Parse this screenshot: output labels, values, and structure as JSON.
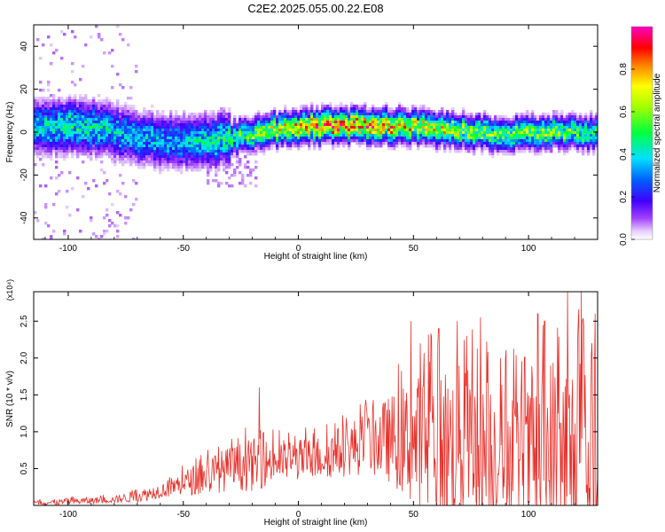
{
  "title": "C2E2.2025.055.00.22.E08",
  "colors": {
    "snr_line": "#e8312b",
    "frame": "#000000",
    "background": "#ffffff"
  },
  "chart_data": [
    {
      "type": "heatmap",
      "xlabel": "Height of straight line (km)",
      "ylabel": "Frequency (Hz)",
      "xlim": [
        -115,
        130
      ],
      "ylim": [
        -50,
        50
      ],
      "x_ticks": [
        "-100",
        "-50",
        "0",
        "50",
        "100"
      ],
      "y_ticks": [
        "-40",
        "-20",
        "0",
        "20",
        "40"
      ],
      "colorbar": {
        "label": "Normalized spectral amplitude",
        "range": [
          0,
          1
        ],
        "ticks": [
          "0.0",
          "0.2",
          "0.4",
          "0.6",
          "0.8"
        ],
        "colormap": "rainbow (white-violet-blue-cyan-green-yellow-red-magenta)"
      },
      "ridge": {
        "x": [
          -115,
          -100,
          -85,
          -70,
          -50,
          -35,
          -20,
          -10,
          0,
          10,
          20,
          30,
          40,
          50,
          60,
          70,
          80,
          90,
          100,
          110,
          120,
          130
        ],
        "frequency_hz": [
          3,
          4,
          2,
          -2,
          -4,
          -3,
          0,
          2,
          3,
          3.5,
          3.5,
          3.5,
          3.5,
          3,
          2,
          1,
          0,
          -0.5,
          0,
          0.5,
          0.5,
          0
        ],
        "peak_amplitude": [
          0.45,
          0.5,
          0.45,
          0.4,
          0.4,
          0.5,
          0.65,
          0.75,
          0.85,
          0.95,
          0.95,
          0.95,
          0.9,
          0.8,
          0.75,
          0.7,
          0.65,
          0.65,
          0.65,
          0.65,
          0.6,
          0.55
        ]
      }
    },
    {
      "type": "line",
      "xlabel": "Height of straight line (km)",
      "ylabel": "SNR (10 * v/v)",
      "y_multiplier": "(x10⁴)",
      "xlim": [
        -115,
        130
      ],
      "ylim": [
        0,
        2.9
      ],
      "x_ticks": [
        "-100",
        "-50",
        "0",
        "50",
        "100"
      ],
      "y_ticks": [
        "0.5",
        "1.0",
        "1.5",
        "2.0",
        "2.5"
      ],
      "series": [
        {
          "values_note": "noisy signal; envelope shown below (x in km, SNR in units of 10^4)",
          "envelope_x": [
            -115,
            -100,
            -80,
            -70,
            -60,
            -50,
            -40,
            -30,
            -20,
            -10,
            0,
            10,
            20,
            30,
            40,
            50,
            60,
            70,
            80,
            90,
            100,
            110,
            120,
            130
          ],
          "envelope_mean": [
            0.03,
            0.05,
            0.08,
            0.12,
            0.2,
            0.3,
            0.4,
            0.5,
            0.55,
            0.6,
            0.62,
            0.65,
            0.75,
            0.85,
            0.9,
            0.85,
            0.8,
            0.8,
            0.75,
            0.7,
            0.65,
            0.6,
            0.55,
            0.5
          ],
          "envelope_max": [
            0.08,
            0.12,
            0.15,
            0.25,
            0.35,
            0.55,
            0.8,
            0.95,
            1.1,
            1.05,
            1.05,
            1.1,
            1.3,
            1.5,
            1.8,
            2.2,
            2.5,
            2.5,
            2.4,
            2.2,
            2.1,
            2.9,
            2.9,
            2.2
          ],
          "peaks": [
            {
              "x": -17,
              "y": 1.6
            },
            {
              "x": 49,
              "y": 2.5
            },
            {
              "x": 53,
              "y": 2.2
            },
            {
              "x": 61,
              "y": 2.4
            },
            {
              "x": 69,
              "y": 2.5
            },
            {
              "x": 73,
              "y": 2.3
            },
            {
              "x": 79,
              "y": 2.55
            },
            {
              "x": 90,
              "y": 2.0
            },
            {
              "x": 104,
              "y": 2.6
            },
            {
              "x": 107,
              "y": 2.5
            },
            {
              "x": 117,
              "y": 2.9
            },
            {
              "x": 123,
              "y": 2.9
            },
            {
              "x": 129,
              "y": 2.6
            }
          ]
        }
      ]
    }
  ]
}
